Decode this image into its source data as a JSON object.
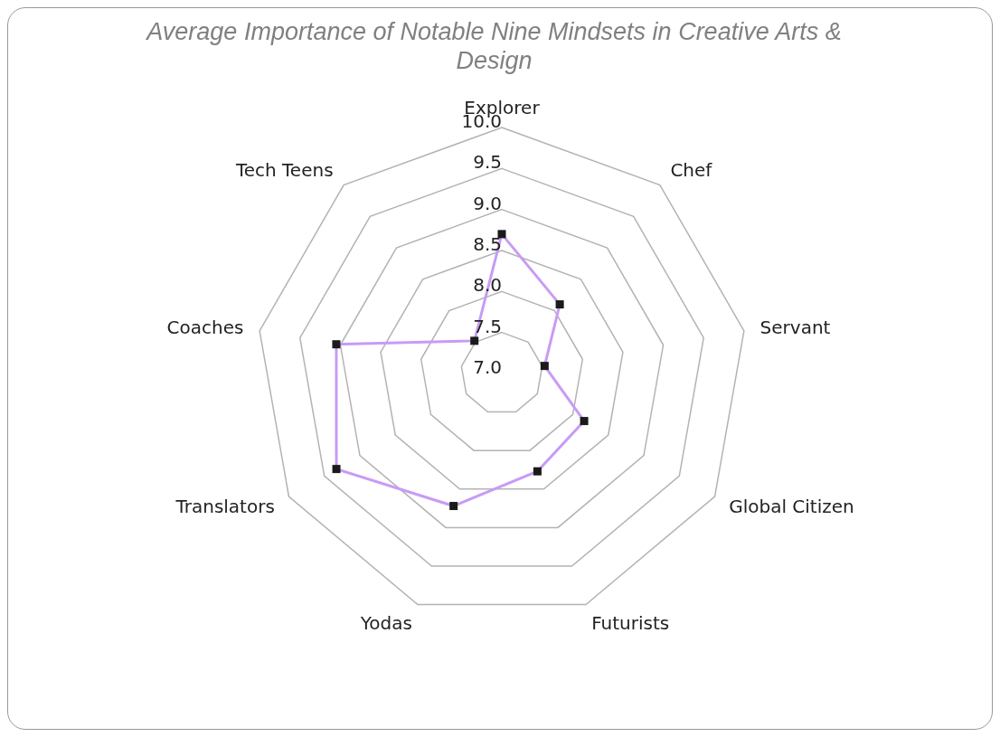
{
  "chart_data": {
    "type": "radar",
    "title": "Average Importance of Notable Nine Mindsets in Creative Arts & Design",
    "categories": [
      "Explorer",
      "Chef",
      "Servant",
      "Global Citizen",
      "Futurists",
      "Yodas",
      "Translators",
      "Coaches",
      "Tech Teens"
    ],
    "series": [
      {
        "color": "#c89bf5",
        "values": [
          8.7,
          8.1,
          7.53,
          8.16,
          8.27,
          8.72,
          9.33,
          9.05,
          7.52
        ]
      }
    ],
    "ylim": [
      7,
      10
    ],
    "yticks": [
      {
        "value": 7,
        "label": "7.0"
      },
      {
        "value": 7.5,
        "label": "7.5"
      },
      {
        "value": 8,
        "label": "8.0"
      },
      {
        "value": 8.5,
        "label": "8.5"
      },
      {
        "value": 9,
        "label": "9.0"
      },
      {
        "value": 9.5,
        "label": "9.5"
      },
      {
        "value": 10,
        "label": "10.0"
      }
    ],
    "grid": true,
    "marker": "square",
    "legend": false
  }
}
